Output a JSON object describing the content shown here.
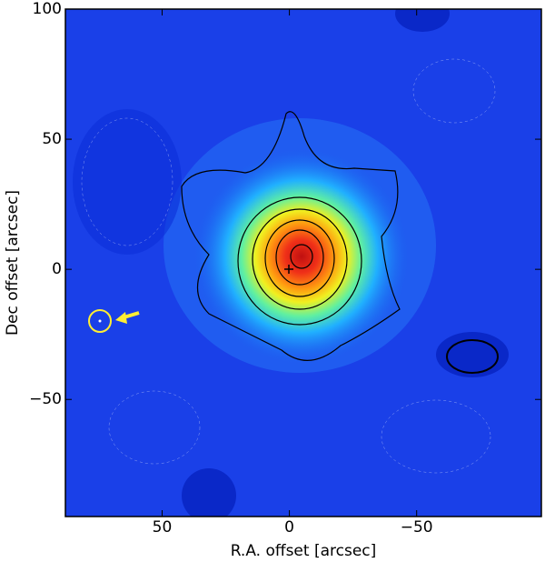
{
  "chart_data": {
    "type": "contour",
    "xlabel": "R.A. offset [arcsec]",
    "ylabel": "Dec offset [arcsec]",
    "xlim": [
      88,
      -99
    ],
    "ylim": [
      -95,
      100
    ],
    "xticks": [
      50,
      0,
      {
        "value": -50,
        "label": "−50"
      }
    ],
    "yticks": [
      {
        "value": -50,
        "label": "−50"
      },
      0,
      50,
      100
    ]
  }
}
